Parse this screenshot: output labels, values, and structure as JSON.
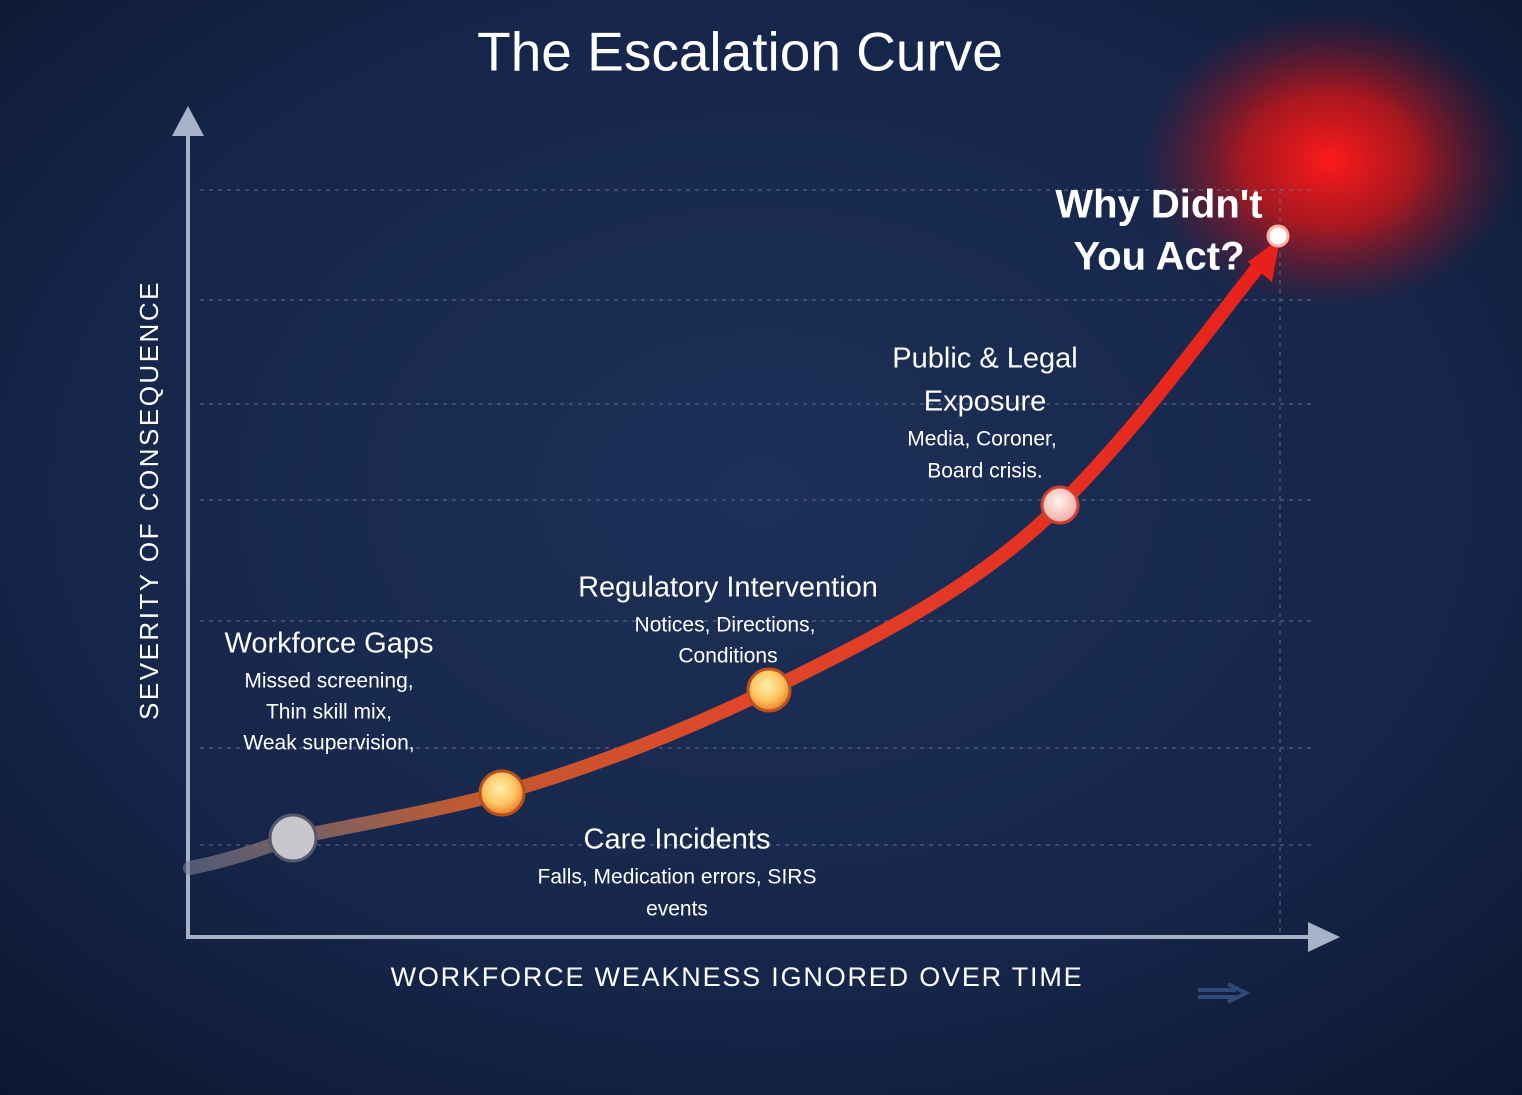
{
  "title": "The Escalation Curve",
  "y_axis_label": "SEVERITY OF CONSEQUENCE",
  "x_axis_label": "WORKFORCE WEAKNESS IGNORED OVER TIME",
  "stages": [
    {
      "title_lines": [
        "Workforce Gaps"
      ],
      "details": [
        "Missed screening,",
        "Thin skill mix,",
        "Weak supervision,"
      ]
    },
    {
      "title_lines": [
        "Care Incidents"
      ],
      "details": [
        "Falls, Medication errors, SIRS",
        "events"
      ]
    },
    {
      "title_lines": [
        "Regulatory Intervention"
      ],
      "details": [
        "Notices, Directions,",
        "Conditions"
      ]
    },
    {
      "title_lines": [
        "Public & Legal",
        "Exposure"
      ],
      "details": [
        "Media, Coroner,",
        "Board crisis."
      ]
    },
    {
      "title_lines": [
        "Why Didn't",
        "You Act?"
      ],
      "details": []
    }
  ]
}
